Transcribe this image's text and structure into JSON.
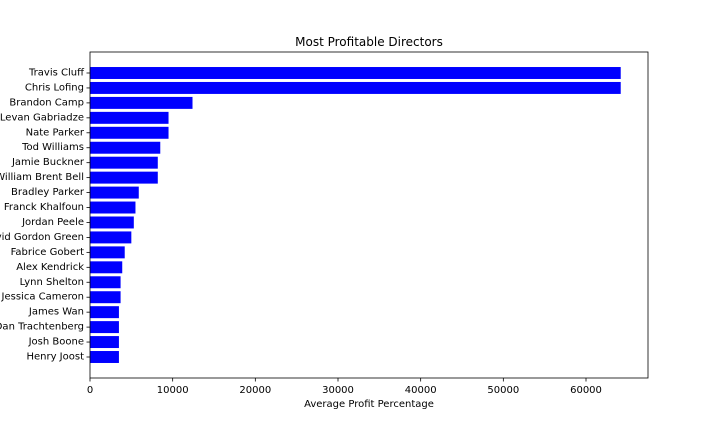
{
  "chart_data": {
    "type": "bar",
    "orientation": "horizontal",
    "title": "Most Profitable Directors",
    "xlabel": "Average Profit Percentage",
    "ylabel": "",
    "xlim": [
      0,
      67500
    ],
    "xticks": [
      0,
      10000,
      20000,
      30000,
      40000,
      50000,
      60000
    ],
    "grid": false,
    "bar_color": "#0000ff",
    "categories": [
      "Travis Cluff",
      "Chris Lofing",
      "Brandon Camp",
      "Levan Gabriadze",
      "Nate Parker",
      "Tod Williams",
      "Jamie Buckner",
      "William Brent Bell",
      "Bradley Parker",
      "Franck Khalfoun",
      "Jordan Peele",
      "David Gordon Green",
      "Fabrice Gobert",
      "Alex Kendrick",
      "Lynn Shelton",
      "Jessica Cameron",
      "James Wan",
      "Dan Trachtenberg",
      "Josh Boone",
      "Henry Joost"
    ],
    "values": [
      64200,
      64200,
      12400,
      9500,
      9500,
      8500,
      8200,
      8200,
      5900,
      5500,
      5300,
      5000,
      4200,
      3900,
      3700,
      3700,
      3500,
      3500,
      3500,
      3500
    ]
  }
}
